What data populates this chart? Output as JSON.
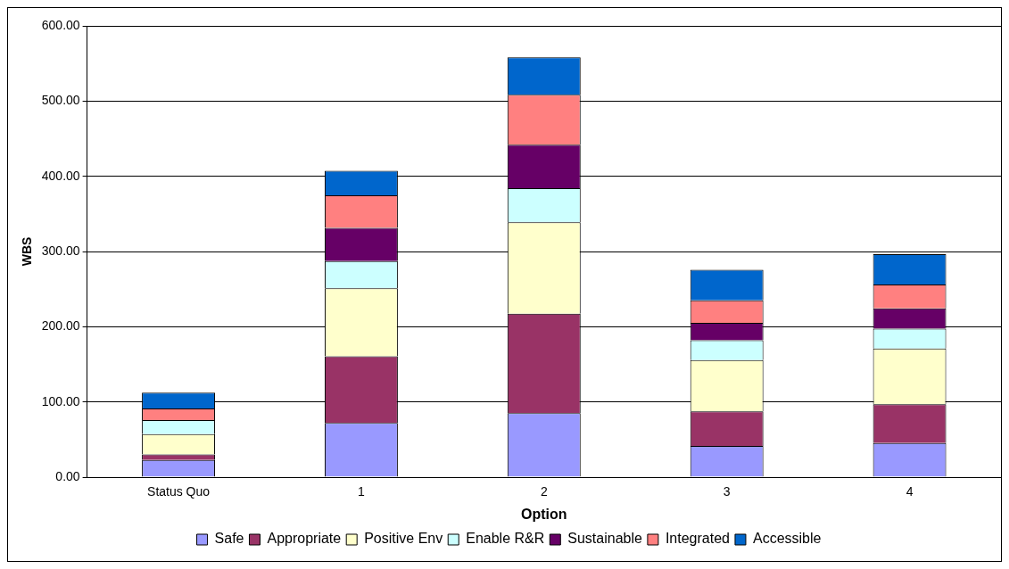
{
  "chart_data": {
    "type": "bar",
    "stacked": true,
    "xlabel": "Option",
    "ylabel": "WBS",
    "categories": [
      "Status Quo",
      "1",
      "2",
      "3",
      "4"
    ],
    "series": [
      {
        "name": "Safe",
        "color": "#9999ff",
        "values": [
          22.7,
          71.9,
          85.2,
          41.5,
          45.4
        ]
      },
      {
        "name": "Appropriate",
        "color": "#993366",
        "values": [
          7.4,
          88.7,
          132.0,
          45.9,
          51.4
        ]
      },
      {
        "name": "Positive Env",
        "color": "#ffffcc",
        "values": [
          27.1,
          90.6,
          121.7,
          68.1,
          74.1
        ]
      },
      {
        "name": "Enable R&R",
        "color": "#ccffff",
        "values": [
          18.7,
          36.0,
          45.3,
          26.5,
          26.5
        ]
      },
      {
        "name": "Sustainable",
        "color": "#660066",
        "values": [
          0,
          44.3,
          57.7,
          23.1,
          27.0
        ]
      },
      {
        "name": "Integrated",
        "color": "#ff8080",
        "values": [
          15.3,
          43.3,
          66.5,
          30.0,
          31.7
        ]
      },
      {
        "name": "Accessible",
        "color": "#0066cc",
        "values": [
          21.2,
          32.5,
          49.7,
          40.7,
          40.3
        ]
      }
    ],
    "ylim": [
      0,
      600
    ],
    "yticks": [
      {
        "value": 0,
        "label": "0.00"
      },
      {
        "value": 100,
        "label": "100.00"
      },
      {
        "value": 200,
        "label": "200.00"
      },
      {
        "value": 300,
        "label": "300.00"
      },
      {
        "value": 400,
        "label": "400.00"
      },
      {
        "value": 500,
        "label": "500.00"
      },
      {
        "value": 600,
        "label": "600.00"
      }
    ],
    "grid": "y",
    "legend": "bottom"
  }
}
